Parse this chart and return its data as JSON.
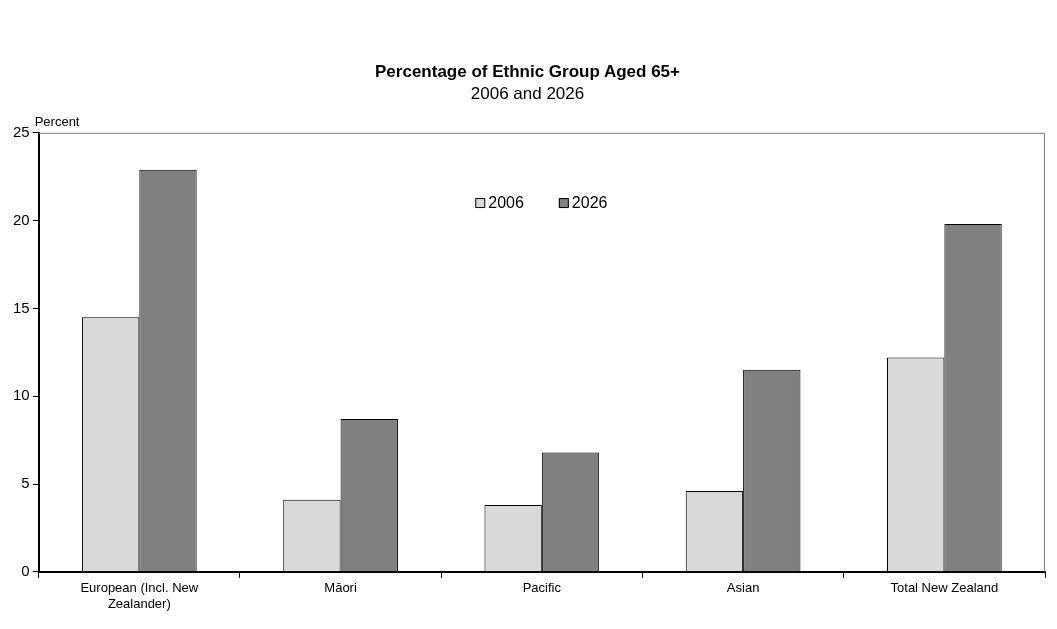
{
  "chart_data": {
    "type": "bar",
    "title": "Percentage of Ethnic Group Aged 65+",
    "subtitle": "2006 and 2026",
    "ylabel": "Percent",
    "categories": [
      "European (Incl. New Zealander)",
      "Māori",
      "Pacific",
      "Asian",
      "Total New Zealand"
    ],
    "series": [
      {
        "name": "2006",
        "color": "#d9d9d9",
        "values": [
          14.5,
          4.1,
          3.8,
          4.6,
          12.2
        ]
      },
      {
        "name": "2026",
        "color": "#808080",
        "values": [
          22.9,
          8.7,
          6.8,
          11.5,
          19.8
        ]
      }
    ],
    "ylim": [
      0,
      25
    ],
    "yticks": [
      0,
      5,
      10,
      15,
      20,
      25
    ],
    "grid": false,
    "legend": "top"
  }
}
